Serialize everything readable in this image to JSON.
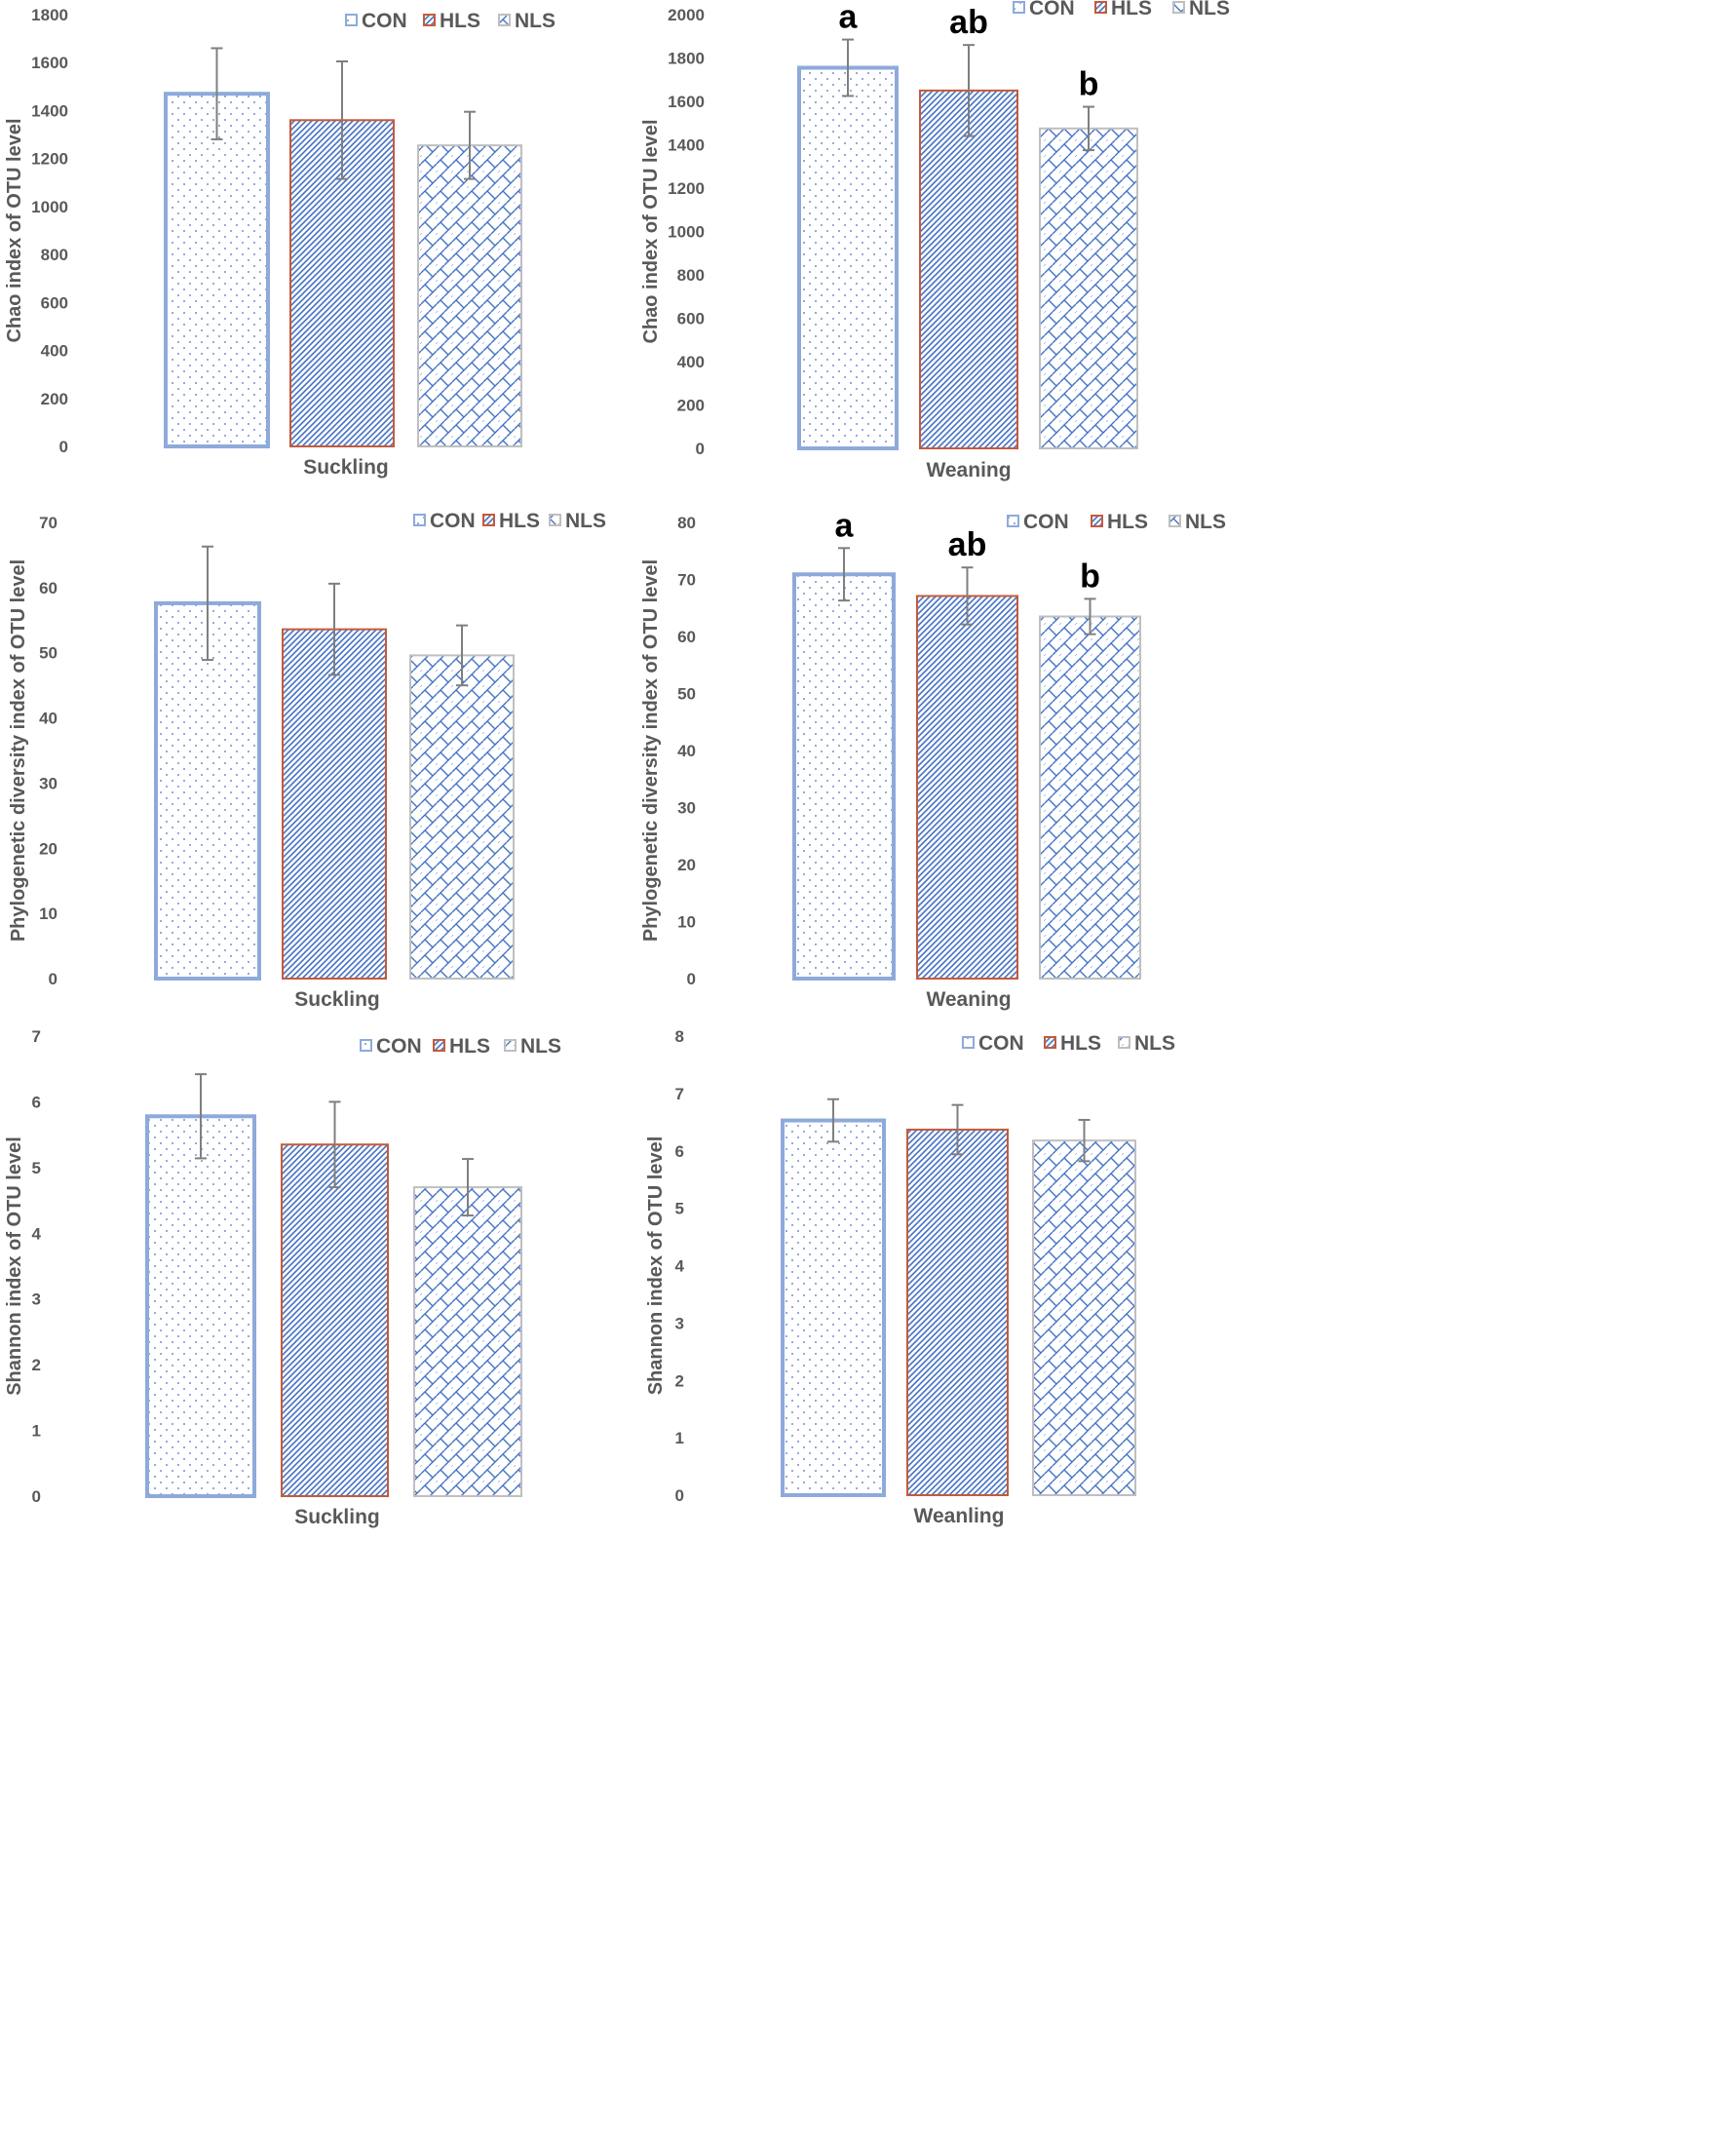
{
  "colors": {
    "con_border": "#8eaadb",
    "hls_border": "#c55a3b",
    "nls_border": "#bfbfbf",
    "pattern": "#4472c4",
    "tick_text": "#595959",
    "error_bar": "#7f7f7f"
  },
  "chart_data": [
    {
      "type": "bar",
      "panel": "top-left",
      "title": "",
      "xlabel": "Suckling",
      "ylabel": "Chao index of OTU level",
      "ylim": [
        0,
        1800
      ],
      "yticks": [
        "0",
        "200",
        "400",
        "600",
        "800",
        "1000",
        "1200",
        "1400",
        "1600",
        "1800"
      ],
      "legend": [
        "CON",
        "HLS",
        "NLS"
      ],
      "legend_position": "top",
      "series": [
        {
          "name": "CON",
          "value": 1470,
          "error": 190,
          "sig": ""
        },
        {
          "name": "HLS",
          "value": 1360,
          "error": 245,
          "sig": ""
        },
        {
          "name": "NLS",
          "value": 1255,
          "error": 140,
          "sig": ""
        }
      ]
    },
    {
      "type": "bar",
      "panel": "top-right",
      "title": "",
      "xlabel": "Weaning",
      "ylabel": "Chao index of OTU level",
      "ylim": [
        0,
        2000
      ],
      "yticks": [
        "0",
        "200",
        "400",
        "600",
        "800",
        "1000",
        "1200",
        "1400",
        "1600",
        "1800",
        "2000"
      ],
      "legend": [
        "CON",
        "HLS",
        "NLS"
      ],
      "legend_position": "top-right",
      "series": [
        {
          "name": "CON",
          "value": 1755,
          "error": 130,
          "sig": "a"
        },
        {
          "name": "HLS",
          "value": 1650,
          "error": 210,
          "sig": "ab"
        },
        {
          "name": "NLS",
          "value": 1475,
          "error": 100,
          "sig": "b"
        }
      ]
    },
    {
      "type": "bar",
      "panel": "middle-left",
      "title": "",
      "xlabel": "Suckling",
      "ylabel": "Phylogenetic diversity index of OTU level",
      "ylim": [
        0,
        70
      ],
      "yticks": [
        "0",
        "10",
        "20",
        "30",
        "40",
        "50",
        "60",
        "70"
      ],
      "legend": [
        "CON",
        "HLS",
        "NLS"
      ],
      "legend_position": "top-right",
      "series": [
        {
          "name": "CON",
          "value": 57.6,
          "error": 8.7,
          "sig": ""
        },
        {
          "name": "HLS",
          "value": 53.6,
          "error": 7.0,
          "sig": ""
        },
        {
          "name": "NLS",
          "value": 49.6,
          "error": 4.6,
          "sig": ""
        }
      ]
    },
    {
      "type": "bar",
      "panel": "middle-right",
      "title": "",
      "xlabel": "Weaning",
      "ylabel": "Phylogenetic diversity index of OTU level",
      "ylim": [
        0,
        80
      ],
      "yticks": [
        "0",
        "10",
        "20",
        "30",
        "40",
        "50",
        "60",
        "70",
        "80"
      ],
      "legend": [
        "CON",
        "HLS",
        "NLS"
      ],
      "legend_position": "top-right",
      "series": [
        {
          "name": "CON",
          "value": 70.9,
          "error": 4.6,
          "sig": "a"
        },
        {
          "name": "HLS",
          "value": 67.1,
          "error": 5.0,
          "sig": "ab"
        },
        {
          "name": "NLS",
          "value": 63.5,
          "error": 3.1,
          "sig": "b"
        }
      ]
    },
    {
      "type": "bar",
      "panel": "bottom-left",
      "title": "",
      "xlabel": "Suckling",
      "ylabel": "Shannon index of OTU level",
      "ylim": [
        0,
        7
      ],
      "yticks": [
        "0",
        "1",
        "2",
        "3",
        "4",
        "5",
        "6",
        "7"
      ],
      "legend": [
        "CON",
        "HLS",
        "NLS"
      ],
      "legend_position": "top-right",
      "series": [
        {
          "name": "CON",
          "value": 5.78,
          "error": 0.64,
          "sig": ""
        },
        {
          "name": "HLS",
          "value": 5.35,
          "error": 0.65,
          "sig": ""
        },
        {
          "name": "NLS",
          "value": 4.7,
          "error": 0.43,
          "sig": ""
        }
      ]
    },
    {
      "type": "bar",
      "panel": "bottom-right",
      "title": "",
      "xlabel": "Weanling",
      "ylabel": "Shannon index of OTU level",
      "ylim": [
        0,
        8
      ],
      "yticks": [
        "0",
        "1",
        "2",
        "3",
        "4",
        "5",
        "6",
        "7",
        "8"
      ],
      "legend": [
        "CON",
        "HLS",
        "NLS"
      ],
      "legend_position": "top-right",
      "series": [
        {
          "name": "CON",
          "value": 6.53,
          "error": 0.37,
          "sig": ""
        },
        {
          "name": "HLS",
          "value": 6.37,
          "error": 0.43,
          "sig": ""
        },
        {
          "name": "NLS",
          "value": 6.18,
          "error": 0.36,
          "sig": ""
        }
      ]
    }
  ]
}
